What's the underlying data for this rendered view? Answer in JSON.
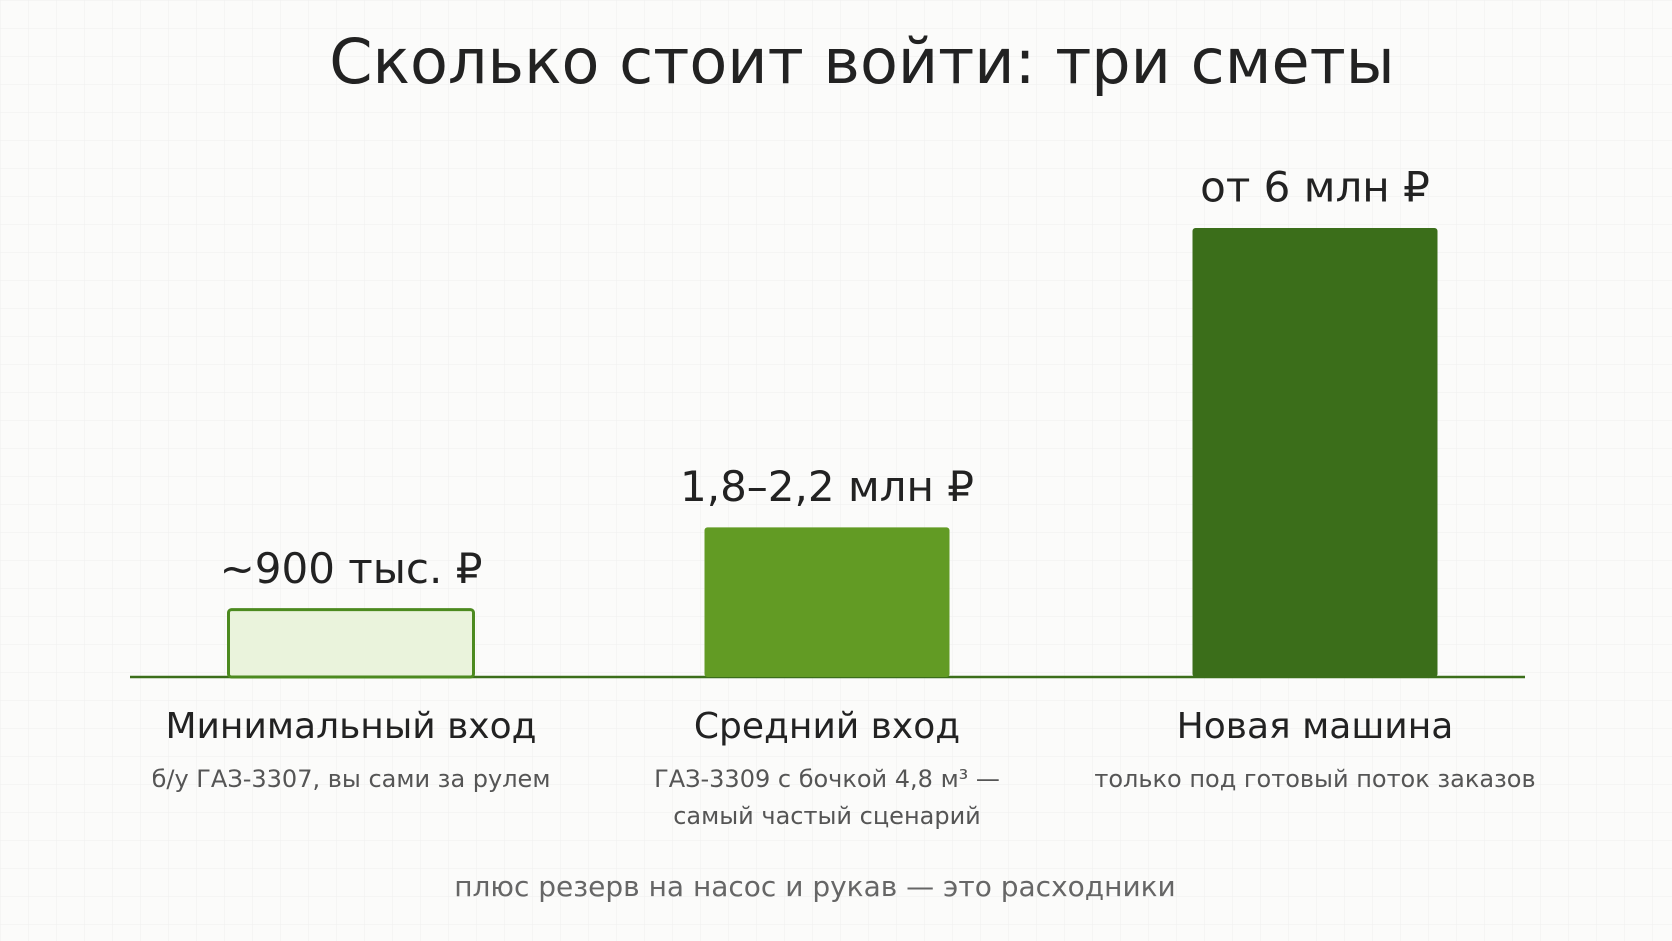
{
  "chart_data": {
    "type": "bar",
    "title": "Сколько стоит войти: три сметы",
    "categories": [
      "Минимальный вход",
      "Средний вход",
      "Новая машина"
    ],
    "descriptions": [
      [
        "б/у ГАЗ-3307, вы сами за рулем"
      ],
      [
        "ГАЗ-3309 с бочкой 4,8 м³ —",
        "самый частый сценарий"
      ],
      [
        "только под готовый поток заказов"
      ]
    ],
    "values": [
      0.9,
      2,
      6
    ],
    "value_labels": [
      "~900 тыс. ₽",
      "1,8–2,2 млн ₽",
      "от 6 млн ₽"
    ],
    "colors": [
      "#eaf3dc",
      "#629b24",
      "#3b6e1a"
    ],
    "outline": "#4c8a1f",
    "note": "плюс резерв на насос и рукав — это расходники"
  }
}
